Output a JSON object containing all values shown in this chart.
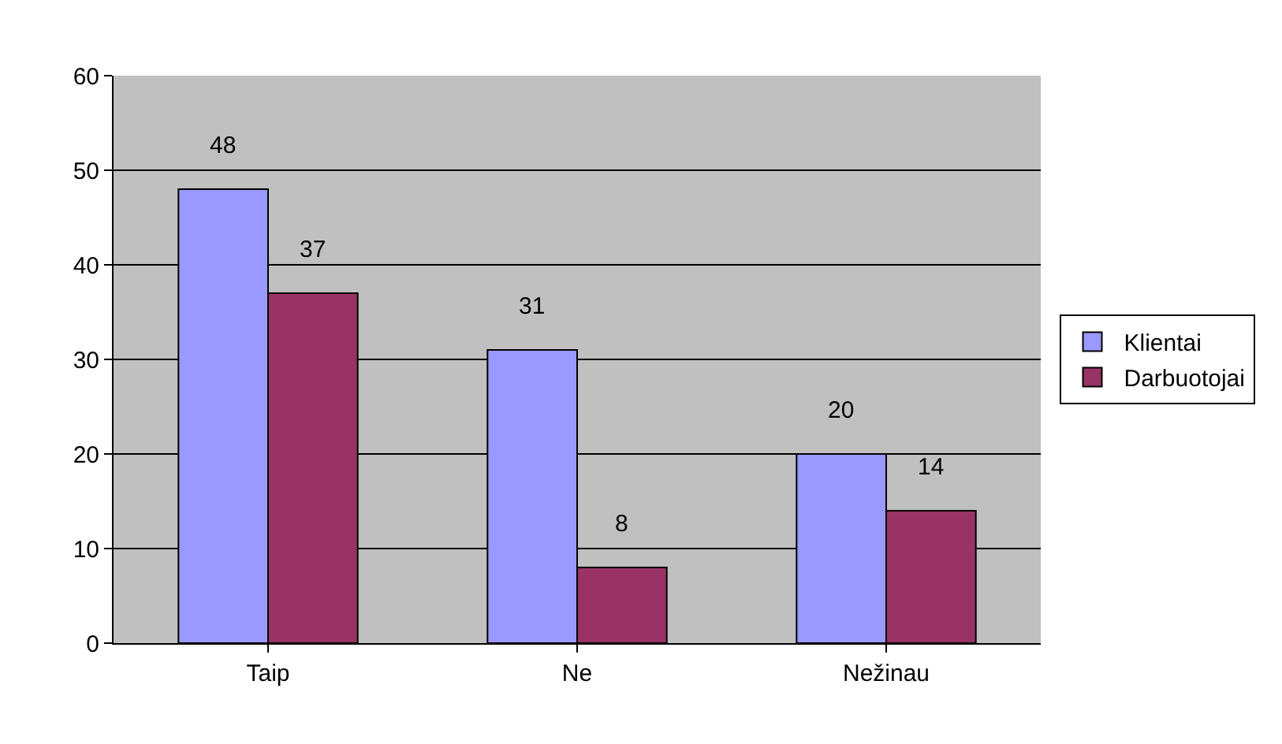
{
  "chart_data": {
    "type": "bar",
    "categories": [
      "Taip",
      "Ne",
      "Nežinau"
    ],
    "series": [
      {
        "name": "Klientai",
        "color": "#9999ff",
        "values": [
          48,
          31,
          20
        ]
      },
      {
        "name": "Darbuotojai",
        "color": "#993366",
        "values": [
          37,
          8,
          14
        ]
      }
    ],
    "ylim": [
      0,
      60
    ],
    "yticks": [
      0,
      10,
      20,
      30,
      40,
      50,
      60
    ],
    "grid": "y",
    "legend": "right",
    "data_labels": true
  }
}
